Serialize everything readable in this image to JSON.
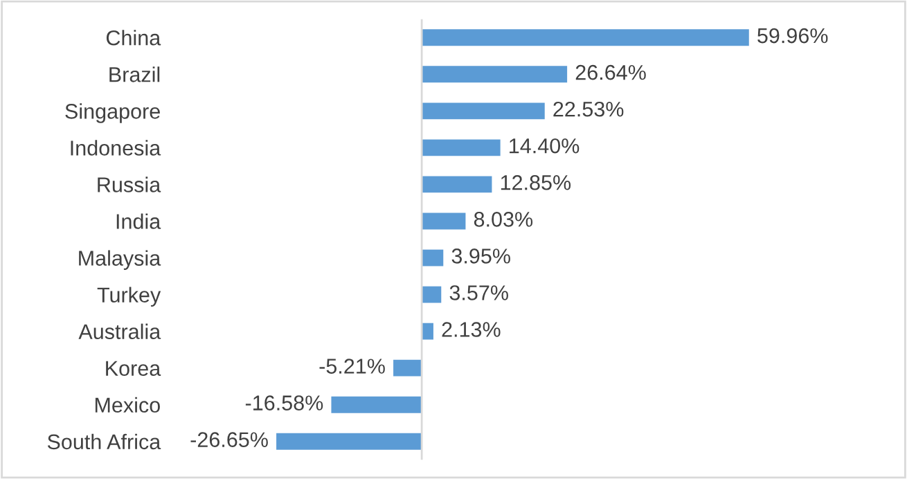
{
  "chart_data": {
    "type": "bar",
    "orientation": "horizontal",
    "categories": [
      "China",
      "Brazil",
      "Singapore",
      "Indonesia",
      "Russia",
      "India",
      "Malaysia",
      "Turkey",
      "Australia",
      "Korea",
      "Mexico",
      "South Africa"
    ],
    "values": [
      59.96,
      26.64,
      22.53,
      14.4,
      12.85,
      8.03,
      3.95,
      3.57,
      2.13,
      -5.21,
      -16.58,
      -26.65
    ],
    "value_labels": [
      "59.96%",
      "26.64%",
      "22.53%",
      "14.40%",
      "12.85%",
      "8.03%",
      "3.95%",
      "3.57%",
      "2.13%",
      "-5.21%",
      "-16.58%",
      "-26.65%"
    ],
    "color": "#5b9bd5",
    "grid": false,
    "legend": false
  }
}
